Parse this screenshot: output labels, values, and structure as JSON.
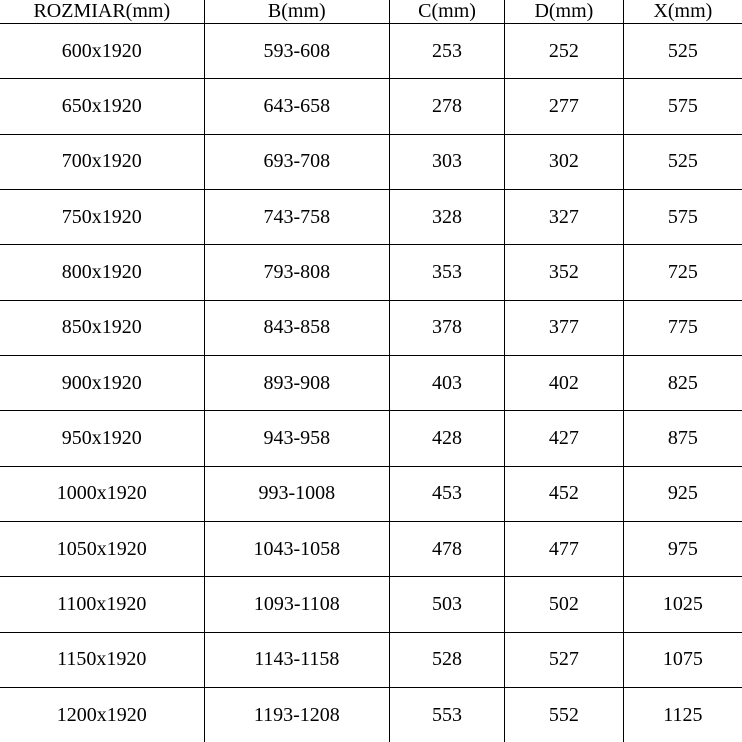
{
  "table": {
    "type": "table",
    "background_color": "#ffffff",
    "border_color": "#000000",
    "text_color": "#000000",
    "font_family": "SimSun",
    "font_size_pt": 15,
    "column_widths_pct": [
      27.5,
      25,
      15.5,
      16,
      16
    ],
    "alignment": "center",
    "columns": [
      "ROZMIAR(mm)",
      "B(mm)",
      "C(mm)",
      "D(mm)",
      "X(mm)"
    ],
    "rows": [
      [
        "600x1920",
        "593-608",
        "253",
        "252",
        "525"
      ],
      [
        "650x1920",
        "643-658",
        "278",
        "277",
        "575"
      ],
      [
        "700x1920",
        "693-708",
        "303",
        "302",
        "525"
      ],
      [
        "750x1920",
        "743-758",
        "328",
        "327",
        "575"
      ],
      [
        "800x1920",
        "793-808",
        "353",
        "352",
        "725"
      ],
      [
        "850x1920",
        "843-858",
        "378",
        "377",
        "775"
      ],
      [
        "900x1920",
        "893-908",
        "403",
        "402",
        "825"
      ],
      [
        "950x1920",
        "943-958",
        "428",
        "427",
        "875"
      ],
      [
        "1000x1920",
        "993-1008",
        "453",
        "452",
        "925"
      ],
      [
        "1050x1920",
        "1043-1058",
        "478",
        "477",
        "975"
      ],
      [
        "1100x1920",
        "1093-1108",
        "503",
        "502",
        "1025"
      ],
      [
        "1150x1920",
        "1143-1158",
        "528",
        "527",
        "1075"
      ],
      [
        "1200x1920",
        "1193-1208",
        "553",
        "552",
        "1125"
      ]
    ]
  }
}
